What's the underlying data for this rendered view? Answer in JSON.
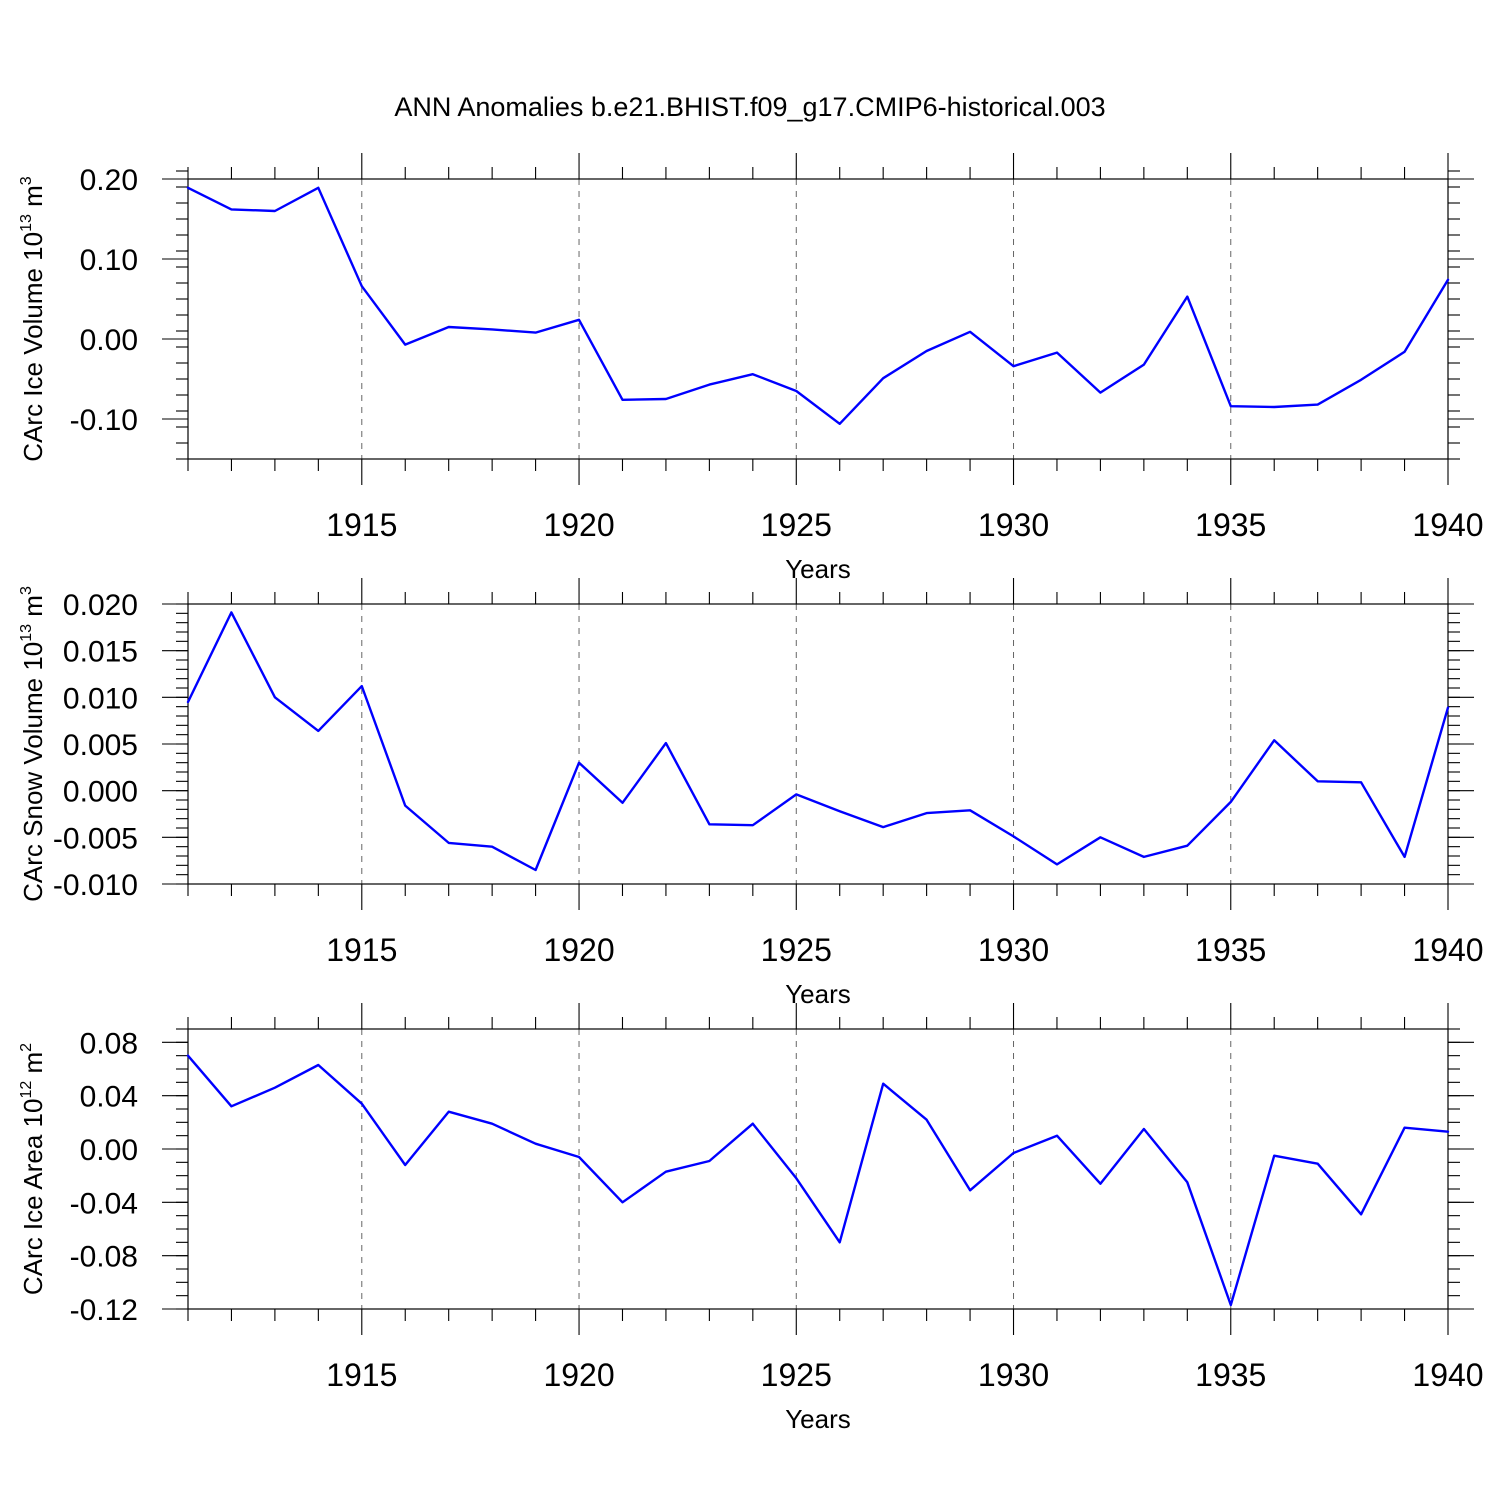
{
  "figure": {
    "title": "ANN Anomalies b.e21.BHIST.f09_g17.CMIP6-historical.003",
    "line_color": "#0000ff"
  },
  "chart_data": [
    {
      "type": "line",
      "ylabel": {
        "main": "CArc Ice Volume 10",
        "exp": "13",
        "unit": " m",
        "unit_exp": "3"
      },
      "xlabel": "Years",
      "xlim": [
        1911,
        1940
      ],
      "ylim": [
        -0.15,
        0.2
      ],
      "yticks": [
        0.2,
        0.1,
        0.0,
        -0.1
      ],
      "ytick_labels": [
        "0.20",
        "0.10",
        "0.00",
        "-0.10"
      ],
      "yminor_step": 0.02,
      "xticks": [
        1915,
        1920,
        1925,
        1930,
        1935,
        1940
      ],
      "xtick_labels": [
        "1915",
        "1920",
        "1925",
        "1930",
        "1935",
        "1940"
      ],
      "x": [
        1911,
        1912,
        1913,
        1914,
        1915,
        1916,
        1917,
        1918,
        1919,
        1920,
        1921,
        1922,
        1923,
        1924,
        1925,
        1926,
        1927,
        1928,
        1929,
        1930,
        1931,
        1932,
        1933,
        1934,
        1935,
        1936,
        1937,
        1938,
        1939,
        1940
      ],
      "values": [
        0.189,
        0.162,
        0.16,
        0.189,
        0.066,
        -0.007,
        0.015,
        0.012,
        0.008,
        0.024,
        -0.076,
        -0.075,
        -0.057,
        -0.044,
        -0.065,
        -0.106,
        -0.049,
        -0.015,
        0.009,
        -0.034,
        -0.017,
        -0.067,
        -0.032,
        0.053,
        -0.084,
        -0.085,
        -0.082,
        -0.051,
        -0.016,
        0.074
      ]
    },
    {
      "type": "line",
      "ylabel": {
        "main": "CArc Snow Volume 10",
        "exp": "13",
        "unit": " m",
        "unit_exp": "3"
      },
      "xlabel": "Years",
      "xlim": [
        1911,
        1940
      ],
      "ylim": [
        -0.01,
        0.02
      ],
      "yticks": [
        0.02,
        0.015,
        0.01,
        0.005,
        0.0,
        -0.005,
        -0.01
      ],
      "ytick_labels": [
        "0.020",
        "0.015",
        "0.010",
        "0.005",
        "0.000",
        "-0.005",
        "-0.010"
      ],
      "yminor_step": 0.001,
      "xticks": [
        1915,
        1920,
        1925,
        1930,
        1935,
        1940
      ],
      "xtick_labels": [
        "1915",
        "1920",
        "1925",
        "1930",
        "1935",
        "1940"
      ],
      "x": [
        1911,
        1912,
        1913,
        1914,
        1915,
        1916,
        1917,
        1918,
        1919,
        1920,
        1921,
        1922,
        1923,
        1924,
        1925,
        1926,
        1927,
        1928,
        1929,
        1930,
        1931,
        1932,
        1933,
        1934,
        1935,
        1936,
        1937,
        1938,
        1939,
        1940
      ],
      "values": [
        0.0095,
        0.0191,
        0.01,
        0.0064,
        0.0112,
        -0.0016,
        -0.0056,
        -0.006,
        -0.0085,
        0.003,
        -0.0013,
        0.0051,
        -0.0036,
        -0.0037,
        -0.0004,
        -0.0022,
        -0.0039,
        -0.0024,
        -0.0021,
        -0.0049,
        -0.0079,
        -0.005,
        -0.0071,
        -0.0059,
        -0.0012,
        0.0054,
        0.001,
        0.0009,
        -0.0071,
        0.0089
      ]
    },
    {
      "type": "line",
      "ylabel": {
        "main": "CArc Ice Area 10",
        "exp": "12",
        "unit": " m",
        "unit_exp": "2"
      },
      "xlabel": "Years",
      "xlim": [
        1911,
        1940
      ],
      "ylim": [
        -0.12,
        0.09
      ],
      "yticks": [
        0.08,
        0.04,
        0.0,
        -0.04,
        -0.08,
        -0.12
      ],
      "ytick_labels": [
        "0.08",
        "0.04",
        "0.00",
        "-0.04",
        "-0.08",
        "-0.12"
      ],
      "yminor_step": 0.01,
      "xticks": [
        1915,
        1920,
        1925,
        1930,
        1935,
        1940
      ],
      "xtick_labels": [
        "1915",
        "1920",
        "1925",
        "1930",
        "1935",
        "1940"
      ],
      "x": [
        1911,
        1912,
        1913,
        1914,
        1915,
        1916,
        1917,
        1918,
        1919,
        1920,
        1921,
        1922,
        1923,
        1924,
        1925,
        1926,
        1927,
        1928,
        1929,
        1930,
        1931,
        1932,
        1933,
        1934,
        1935,
        1936,
        1937,
        1938,
        1939,
        1940
      ],
      "values": [
        0.07,
        0.032,
        0.046,
        0.063,
        0.034,
        -0.012,
        0.028,
        0.019,
        0.004,
        -0.006,
        -0.04,
        -0.017,
        -0.009,
        0.019,
        -0.022,
        -0.07,
        0.049,
        0.022,
        -0.031,
        -0.003,
        0.01,
        -0.026,
        0.015,
        -0.025,
        -0.117,
        -0.005,
        -0.011,
        -0.049,
        0.016,
        0.013
      ]
    }
  ]
}
